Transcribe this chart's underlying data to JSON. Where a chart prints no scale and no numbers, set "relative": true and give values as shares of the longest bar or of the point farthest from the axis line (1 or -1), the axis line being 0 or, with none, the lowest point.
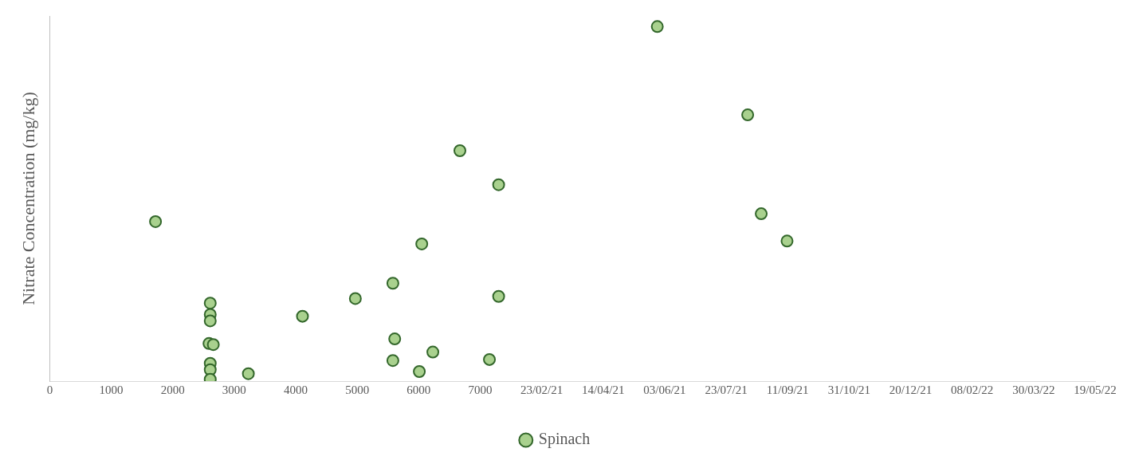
{
  "chart_data": {
    "type": "scatter",
    "ylabel": "Nitrate Concentration (mg/kg)",
    "relative": true,
    "legend": "bottom",
    "marker": "circle",
    "grid": false,
    "xlim": [
      0,
      17000
    ],
    "xticks": [
      0,
      1000,
      2000,
      3000,
      4000,
      5000,
      6000,
      7000,
      {
        "value": 8000,
        "label": "23/02/21"
      },
      {
        "value": 9000,
        "label": "14/04/21"
      },
      {
        "value": 10000,
        "label": "03/06/21"
      },
      {
        "value": 11000,
        "label": "23/07/21"
      },
      {
        "value": 12000,
        "label": "11/09/21"
      },
      {
        "value": 13000,
        "label": "31/10/21"
      },
      {
        "value": 14000,
        "label": "20/12/21"
      },
      {
        "value": 15000,
        "label": "08/02/22"
      },
      {
        "value": 16000,
        "label": "30/03/22"
      },
      {
        "value": 17000,
        "label": "19/05/22"
      }
    ],
    "series": [
      {
        "name": "Spinach",
        "color": "#a9d18e",
        "x": [
          1720,
          2610,
          2610,
          2610,
          2590,
          2660,
          2610,
          2610,
          2610,
          3230,
          4110,
          4970,
          5580,
          5580,
          5610,
          6010,
          6050,
          6230,
          6670,
          7150,
          7300,
          7300,
          9880,
          11350,
          11570,
          11990
        ],
        "values": [
          0.45,
          0.22,
          0.188,
          0.17,
          0.106,
          0.103,
          0.05,
          0.032,
          0.005,
          0.021,
          0.183,
          0.233,
          0.276,
          0.058,
          0.119,
          0.027,
          0.387,
          0.082,
          0.65,
          0.061,
          0.554,
          0.239,
          1,
          0.751,
          0.472,
          0.395
        ]
      }
    ]
  }
}
